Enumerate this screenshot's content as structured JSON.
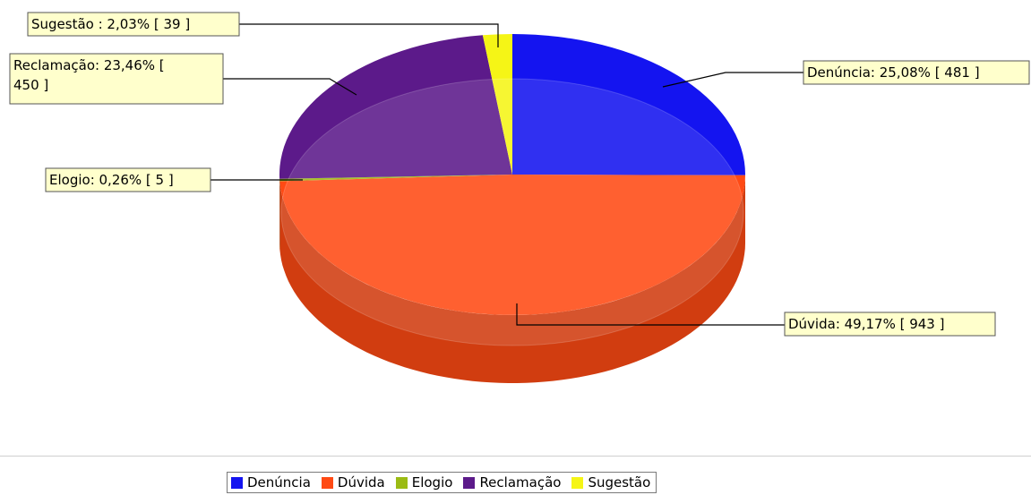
{
  "chart_data": {
    "type": "pie",
    "three_d": true,
    "title": "",
    "start_angle_deg": 90,
    "direction": "clockwise",
    "slices": [
      {
        "name": "Denúncia",
        "percent": 25.08,
        "count": 481,
        "label": "Denúncia: 25,08% [ 481 ]",
        "color": "#1414f0"
      },
      {
        "name": "Dúvida",
        "percent": 49.17,
        "count": 943,
        "label": "Dúvida: 49,17% [ 943 ]",
        "color": "#ff4a14"
      },
      {
        "name": "Elogio",
        "percent": 0.26,
        "count": 5,
        "label": "Elogio: 0,26% [ 5 ]",
        "color": "#9bbb14"
      },
      {
        "name": "Reclamação",
        "percent": 23.46,
        "count": 450,
        "label": "Reclamação: 23,46% [ 450 ]",
        "color": "#5c1a8a"
      },
      {
        "name": "Sugestão",
        "percent": 2.03,
        "count": 39,
        "label": "Sugestão : 2,03% [ 39 ]",
        "color": "#f5f516"
      }
    ],
    "label_box_color": "#ffffcc",
    "legend": {
      "placement": "bottom-center",
      "items": [
        "Denúncia",
        "Dúvida",
        "Elogio",
        "Reclamação",
        "Sugestão"
      ]
    }
  }
}
